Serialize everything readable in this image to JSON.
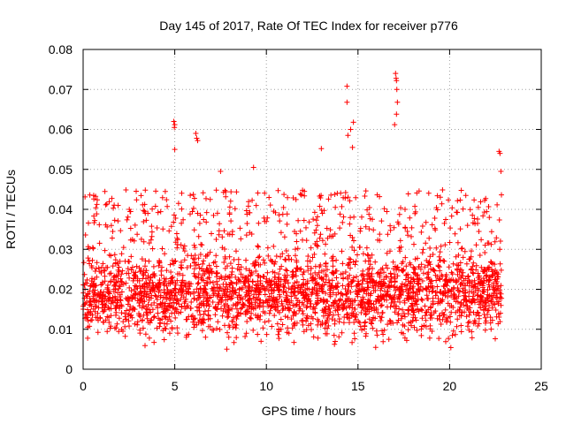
{
  "chart_data": {
    "type": "scatter",
    "title": "Day 145 of 2017, Rate Of TEC Index for receiver p776",
    "xlabel": "GPS time / hours",
    "ylabel": "ROTI / TECUs",
    "xlim": [
      0,
      25
    ],
    "ylim": [
      0,
      0.08
    ],
    "xticks": [
      0,
      5,
      10,
      15,
      20,
      25
    ],
    "xtick_labels": [
      "0",
      "5",
      "10",
      "15",
      "20",
      "25"
    ],
    "yticks": [
      0,
      0.01,
      0.02,
      0.03,
      0.04,
      0.05,
      0.06,
      0.07,
      0.08
    ],
    "ytick_labels": [
      "0",
      "0.01",
      "0.02",
      "0.03",
      "0.04",
      "0.05",
      "0.06",
      "0.07",
      "0.08"
    ],
    "grid": true,
    "marker": "+",
    "color": "#ff0000",
    "data_range": {
      "x_start": 0.0,
      "x_end": 22.85,
      "y_typical_min": 0.004,
      "y_typical_max": 0.045
    },
    "outliers": [
      {
        "x": 4.95,
        "y": 0.062
      },
      {
        "x": 5.0,
        "y": 0.0612
      },
      {
        "x": 4.98,
        "y": 0.0605
      },
      {
        "x": 5.0,
        "y": 0.055
      },
      {
        "x": 6.15,
        "y": 0.059
      },
      {
        "x": 6.2,
        "y": 0.0578
      },
      {
        "x": 6.25,
        "y": 0.0572
      },
      {
        "x": 7.5,
        "y": 0.0495
      },
      {
        "x": 9.3,
        "y": 0.0505
      },
      {
        "x": 13.0,
        "y": 0.0552
      },
      {
        "x": 14.4,
        "y": 0.0708
      },
      {
        "x": 14.4,
        "y": 0.0668
      },
      {
        "x": 14.45,
        "y": 0.0585
      },
      {
        "x": 14.6,
        "y": 0.06
      },
      {
        "x": 14.75,
        "y": 0.0618
      },
      {
        "x": 14.7,
        "y": 0.0555
      },
      {
        "x": 17.05,
        "y": 0.074
      },
      {
        "x": 17.08,
        "y": 0.0728
      },
      {
        "x": 17.1,
        "y": 0.0722
      },
      {
        "x": 17.12,
        "y": 0.07
      },
      {
        "x": 17.15,
        "y": 0.0668
      },
      {
        "x": 17.1,
        "y": 0.0638
      },
      {
        "x": 17.0,
        "y": 0.0612
      },
      {
        "x": 22.7,
        "y": 0.0545
      },
      {
        "x": 22.75,
        "y": 0.054
      },
      {
        "x": 22.8,
        "y": 0.0495
      }
    ]
  }
}
